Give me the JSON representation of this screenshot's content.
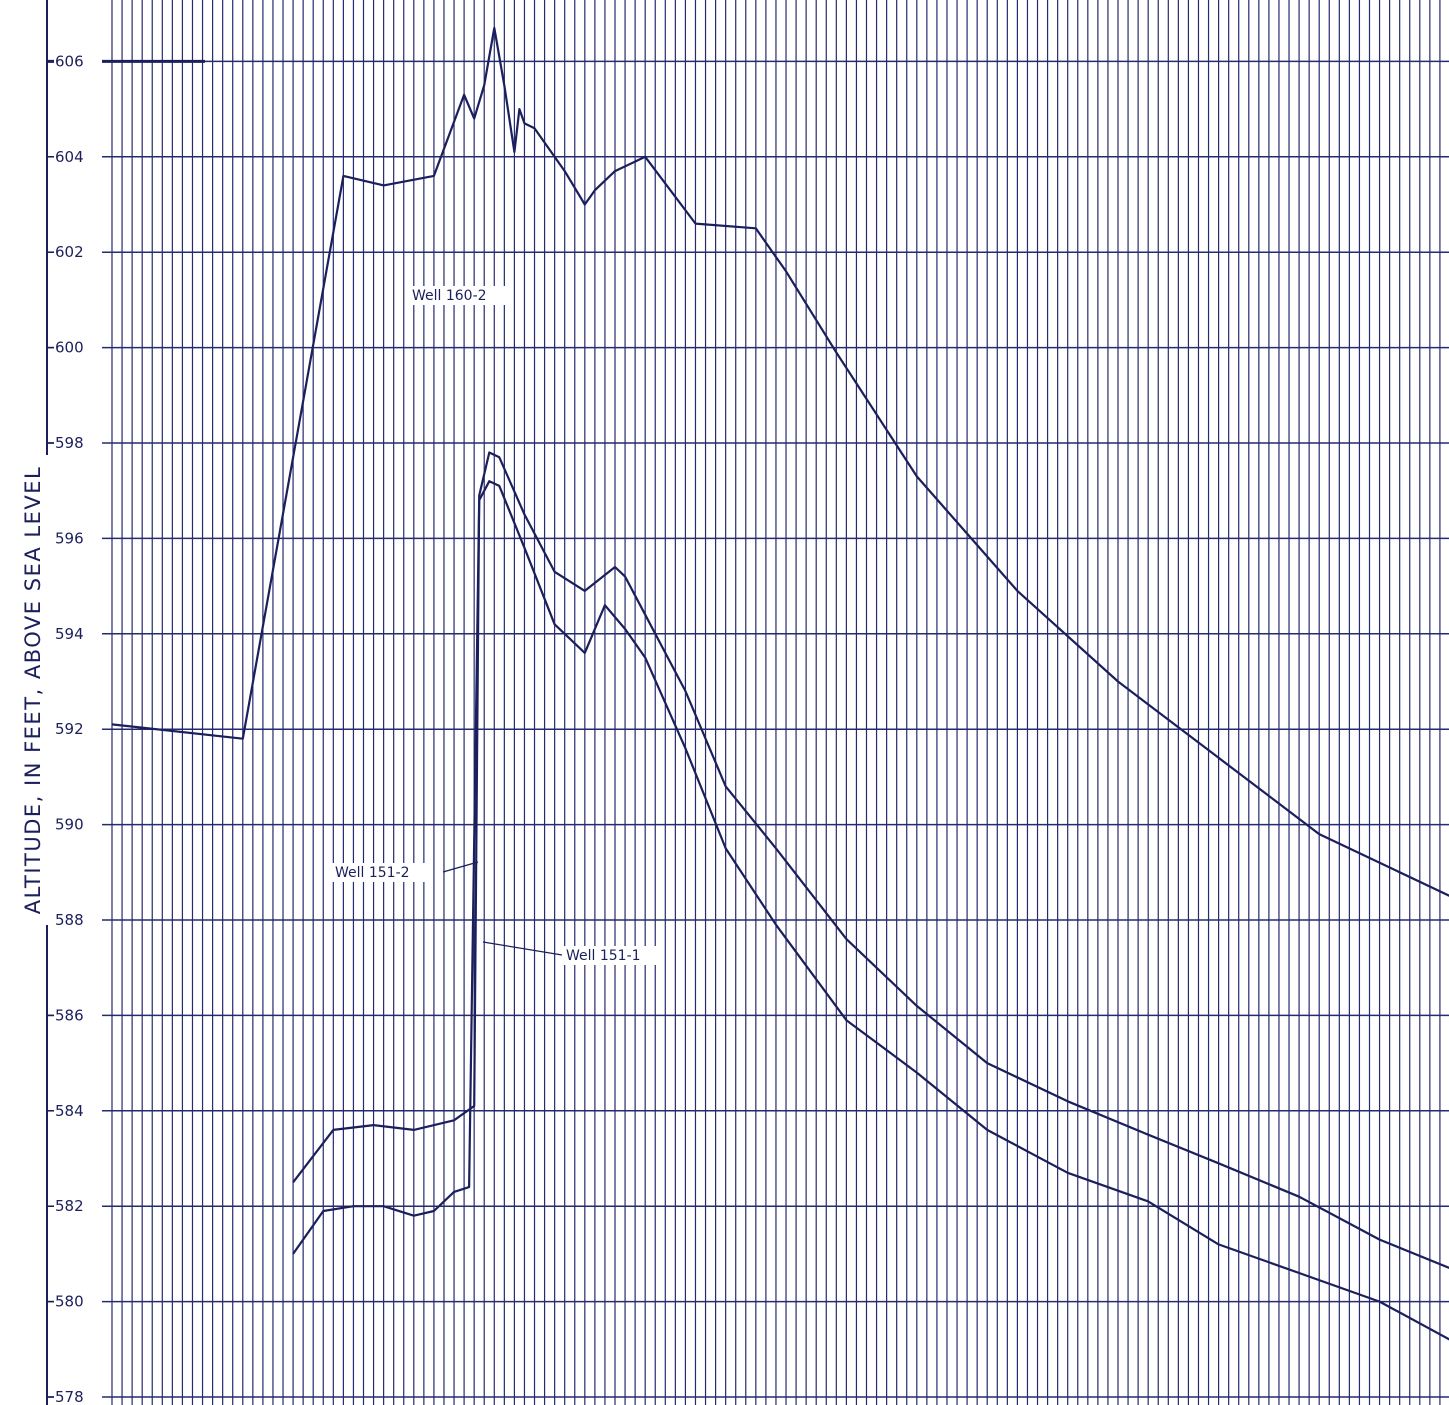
{
  "chart_data": {
    "type": "line",
    "title": "",
    "xlabel": "",
    "ylabel": "ALTITUDE, IN FEET, ABOVE SEA LEVEL",
    "ylim": [
      578,
      607
    ],
    "yticks": [
      "578",
      "580",
      "582",
      "584",
      "586",
      "588",
      "590",
      "592",
      "594",
      "596",
      "598",
      "600",
      "602",
      "604",
      "606"
    ],
    "x_unlabeled": true,
    "grid": true,
    "colors": {
      "ink": "#1b1f5c",
      "grid": "#262a6e",
      "background": "#ffffff"
    },
    "series": [
      {
        "name": "Well 160-2",
        "x": [
          0,
          13,
          23,
          27,
          32,
          35,
          36,
          37,
          38,
          39,
          40,
          40.5,
          41,
          42,
          45,
          47,
          48,
          50,
          53,
          58,
          64,
          67,
          72,
          80,
          90,
          100,
          110,
          120,
          133
        ],
        "y": [
          592.1,
          591.8,
          603.6,
          603.4,
          603.6,
          605.3,
          604.8,
          605.5,
          606.7,
          605.5,
          604.1,
          605.0,
          604.7,
          604.6,
          603.7,
          603.0,
          603.3,
          603.7,
          604.0,
          602.6,
          602.5,
          601.6,
          599.9,
          597.3,
          594.9,
          593.0,
          591.4,
          589.8,
          588.5
        ]
      },
      {
        "name": "Well 151-2",
        "x": [
          18,
          22,
          26,
          30,
          34,
          36,
          36.5,
          37.5,
          38.5,
          41,
          44,
          47,
          50,
          51,
          53,
          57,
          61,
          66,
          73,
          80,
          87,
          95,
          103,
          110,
          118,
          126,
          133
        ],
        "y": [
          582.5,
          583.6,
          583.7,
          583.6,
          583.8,
          584.1,
          596.9,
          597.8,
          597.7,
          596.5,
          595.3,
          594.9,
          595.4,
          595.2,
          594.4,
          592.8,
          590.8,
          589.5,
          587.6,
          586.2,
          585.0,
          584.2,
          583.5,
          582.9,
          582.2,
          581.3,
          580.7
        ]
      },
      {
        "name": "Well 151-1",
        "x": [
          18,
          21,
          24,
          27,
          30,
          32,
          34,
          35.5,
          36.5,
          37.5,
          38.5,
          41,
          44,
          47,
          49,
          51,
          53,
          57,
          61,
          66,
          73,
          80,
          87,
          95,
          103,
          110,
          118,
          126,
          133
        ],
        "y": [
          581.0,
          581.9,
          582.0,
          582.0,
          581.8,
          581.9,
          582.3,
          582.4,
          596.8,
          597.2,
          597.1,
          595.8,
          594.2,
          593.6,
          594.6,
          594.1,
          593.5,
          591.6,
          589.5,
          587.9,
          585.9,
          584.8,
          583.6,
          582.7,
          582.1,
          581.2,
          580.6,
          580.0,
          579.2
        ]
      }
    ],
    "annotations": [
      {
        "series": "Well 160-2",
        "text": "Well 160-2"
      },
      {
        "series": "Well 151-2",
        "text": "Well 151-2"
      },
      {
        "series": "Well 151-1",
        "text": "Well 151-1"
      }
    ]
  }
}
